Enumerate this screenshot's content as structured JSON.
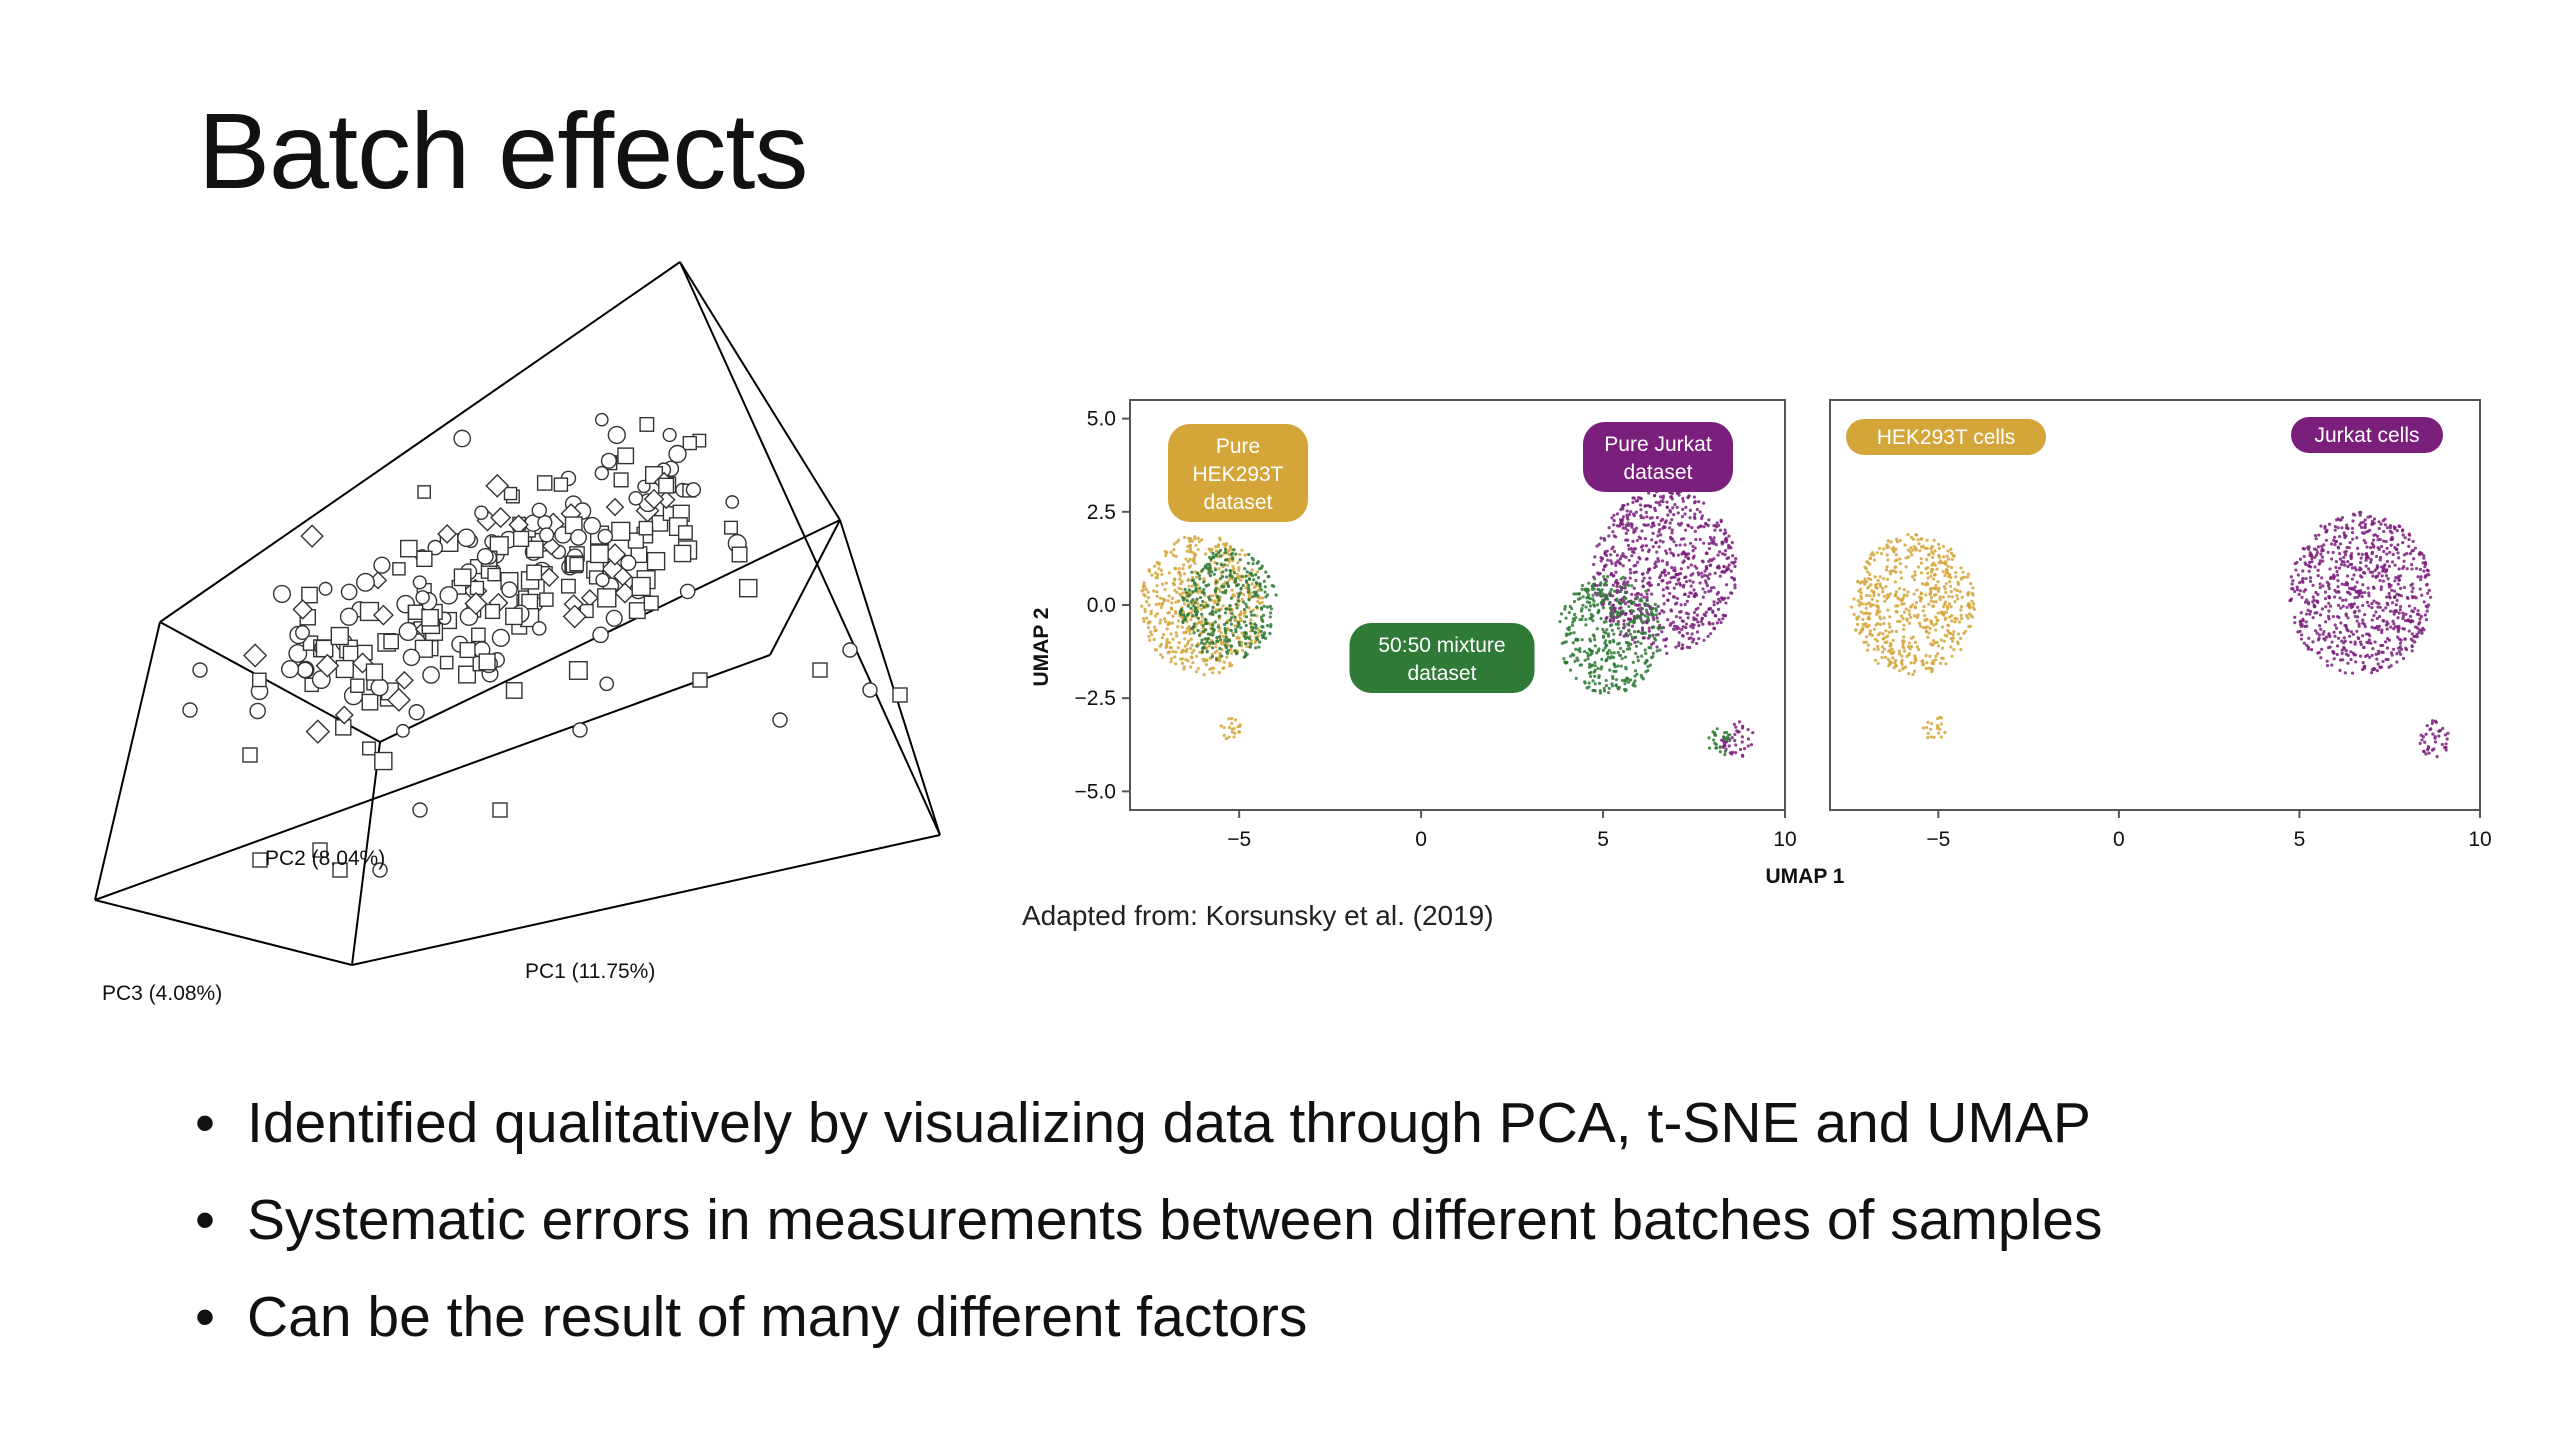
{
  "slide": {
    "title": "Batch effects",
    "caption": "Adapted from: Korsunsky et al. (2019)",
    "bullets": [
      "Identified qualitatively by visualizing data through PCA, t-SNE and UMAP",
      "Systematic errors in measurements between different batches of samples",
      "Can be the result of many different factors"
    ],
    "bullet_glyph": "•"
  },
  "colors": {
    "hek": "#d4a63a",
    "jurkat": "#7b1f7d",
    "mixture": "#2f7a36",
    "text": "#111111"
  },
  "pca": {
    "axis_labels": [
      "PC1 (11.75%)",
      "PC2 (8.04%)",
      "PC3 (4.08%)"
    ],
    "marker_shapes": [
      "circle",
      "square",
      "diamond"
    ]
  },
  "chart_data": [
    {
      "type": "scatter",
      "title": "",
      "xlabel": "UMAP 1",
      "ylabel": "UMAP 2",
      "xlim": [
        -8,
        10
      ],
      "ylim": [
        -5.5,
        5.5
      ],
      "xticks": [
        "−5",
        "0",
        "5",
        "10"
      ],
      "yticks": [
        "5.0",
        "2.5",
        "0.0",
        "−2.5",
        "−5.0"
      ],
      "annotations": [
        "Pure HEK293T dataset",
        "Pure Jurkat dataset",
        "50:50 mixture dataset"
      ],
      "annotation_lines": [
        [
          "Pure",
          "HEK293T",
          "dataset"
        ],
        [
          "Pure Jurkat",
          "dataset"
        ],
        [
          "50:50 mixture",
          "dataset"
        ]
      ],
      "series": [
        {
          "name": "Pure HEK293T dataset",
          "color": "#d4a63a",
          "clusters": [
            {
              "cx": -6,
              "cy": 0.0,
              "r": 1.9
            },
            {
              "cx": -5.2,
              "cy": -3.3,
              "r": 0.35
            }
          ]
        },
        {
          "name": "Pure Jurkat dataset",
          "color": "#7b1f7d",
          "clusters": [
            {
              "cx": 6.7,
              "cy": 0.9,
              "r": 2.2
            },
            {
              "cx": 8.7,
              "cy": -3.6,
              "r": 0.5
            }
          ]
        },
        {
          "name": "50:50 mixture dataset",
          "color": "#2f7a36",
          "clusters": [
            {
              "cx": -5.3,
              "cy": 0.0,
              "r": 1.5
            },
            {
              "cx": 5.2,
              "cy": -0.8,
              "r": 1.6
            },
            {
              "cx": 8.2,
              "cy": -3.7,
              "r": 0.4
            }
          ]
        }
      ]
    },
    {
      "type": "scatter",
      "title": "",
      "xlabel": "UMAP 1",
      "ylabel": "",
      "xlim": [
        -8,
        10
      ],
      "ylim": [
        -5.5,
        5.5
      ],
      "xticks": [
        "−5",
        "0",
        "5",
        "10"
      ],
      "annotations": [
        "HEK293T cells",
        "Jurkat cells"
      ],
      "series": [
        {
          "name": "HEK293T cells",
          "color": "#d4a63a",
          "clusters": [
            {
              "cx": -5.7,
              "cy": 0.0,
              "r": 1.9
            },
            {
              "cx": -5.1,
              "cy": -3.3,
              "r": 0.35
            }
          ]
        },
        {
          "name": "Jurkat cells",
          "color": "#7b1f7d",
          "clusters": [
            {
              "cx": 6.7,
              "cy": 0.3,
              "r": 2.2
            },
            {
              "cx": 8.7,
              "cy": -3.6,
              "r": 0.5
            }
          ]
        }
      ]
    }
  ]
}
